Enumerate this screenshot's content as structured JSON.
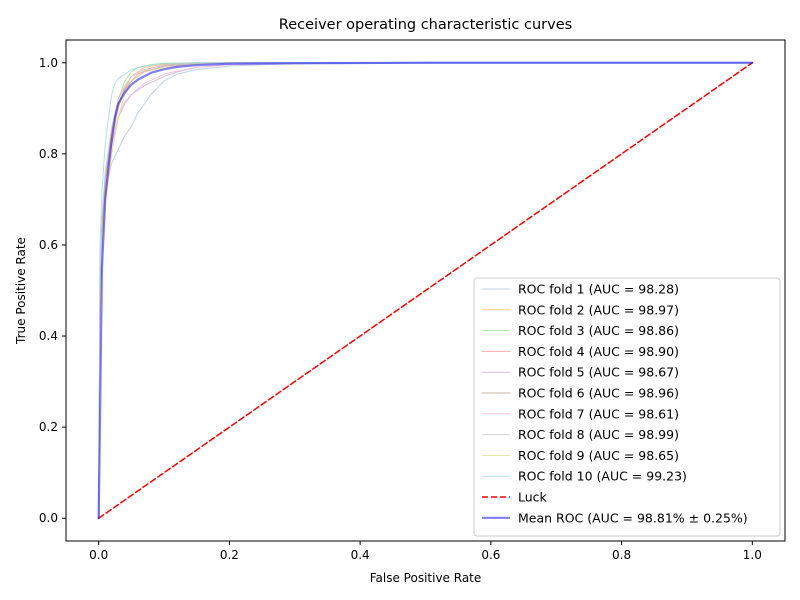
{
  "chart_data": {
    "type": "line",
    "title": "Receiver operating characteristic curves",
    "xlabel": "False Positive Rate",
    "ylabel": "True Positive Rate",
    "xlim": [
      -0.05,
      1.05
    ],
    "ylim": [
      -0.05,
      1.05
    ],
    "xticks": [
      "0.0",
      "0.2",
      "0.4",
      "0.6",
      "0.8",
      "1.0"
    ],
    "yticks": [
      "0.0",
      "0.2",
      "0.4",
      "0.6",
      "0.8",
      "1.0"
    ],
    "grid": false,
    "legend_position": "lower-right",
    "series": [
      {
        "name": "ROC fold 1 (AUC = 98.28)",
        "color": "#aec7e8",
        "alpha": 0.8,
        "width": 1,
        "x": [
          0,
          0.002,
          0.005,
          0.01,
          0.015,
          0.02,
          0.03,
          0.04,
          0.05,
          0.06,
          0.07,
          0.08,
          0.1,
          0.12,
          0.15,
          0.2,
          0.3,
          0.5,
          1.0
        ],
        "y": [
          0,
          0.42,
          0.58,
          0.7,
          0.75,
          0.78,
          0.81,
          0.84,
          0.86,
          0.89,
          0.91,
          0.93,
          0.96,
          0.975,
          0.985,
          0.993,
          0.998,
          1.0,
          1.0
        ]
      },
      {
        "name": "ROC fold 2 (AUC = 98.97)",
        "color": "#ffbb78",
        "alpha": 0.8,
        "width": 1,
        "x": [
          0,
          0.002,
          0.005,
          0.01,
          0.015,
          0.02,
          0.03,
          0.04,
          0.05,
          0.07,
          0.1,
          0.15,
          0.2,
          0.3,
          0.5,
          1.0
        ],
        "y": [
          0,
          0.45,
          0.6,
          0.7,
          0.78,
          0.83,
          0.9,
          0.945,
          0.97,
          0.99,
          0.997,
          0.999,
          1.0,
          1.0,
          1.0,
          1.0
        ]
      },
      {
        "name": "ROC fold 3 (AUC = 98.86)",
        "color": "#98df8a",
        "alpha": 0.8,
        "width": 1,
        "x": [
          0,
          0.002,
          0.005,
          0.01,
          0.02,
          0.03,
          0.04,
          0.05,
          0.06,
          0.08,
          0.1,
          0.15,
          0.2,
          0.3,
          0.5,
          1.0
        ],
        "y": [
          0,
          0.5,
          0.65,
          0.75,
          0.85,
          0.92,
          0.96,
          0.98,
          0.99,
          0.996,
          0.999,
          1.0,
          1.0,
          1.0,
          1.0,
          1.0
        ]
      },
      {
        "name": "ROC fold 4 (AUC = 98.90)",
        "color": "#ff9896",
        "alpha": 0.8,
        "width": 1,
        "x": [
          0,
          0.002,
          0.005,
          0.01,
          0.02,
          0.03,
          0.04,
          0.05,
          0.06,
          0.08,
          0.1,
          0.15,
          0.2,
          0.3,
          0.5,
          1.0
        ],
        "y": [
          0,
          0.48,
          0.62,
          0.72,
          0.84,
          0.91,
          0.945,
          0.96,
          0.975,
          0.988,
          0.995,
          0.999,
          1.0,
          1.0,
          1.0,
          1.0
        ]
      },
      {
        "name": "ROC fold 5 (AUC = 98.67)",
        "color": "#c5b0d5",
        "alpha": 0.8,
        "width": 1,
        "x": [
          0,
          0.002,
          0.005,
          0.01,
          0.02,
          0.03,
          0.04,
          0.05,
          0.07,
          0.1,
          0.12,
          0.15,
          0.2,
          0.3,
          0.5,
          1.0
        ],
        "y": [
          0,
          0.46,
          0.6,
          0.72,
          0.82,
          0.88,
          0.91,
          0.93,
          0.95,
          0.97,
          0.98,
          0.99,
          0.996,
          0.999,
          1.0,
          1.0
        ]
      },
      {
        "name": "ROC fold 6 (AUC = 98.96)",
        "color": "#c49c94",
        "alpha": 0.8,
        "width": 1,
        "x": [
          0,
          0.002,
          0.005,
          0.01,
          0.02,
          0.03,
          0.04,
          0.05,
          0.07,
          0.1,
          0.15,
          0.2,
          0.3,
          0.5,
          1.0
        ],
        "y": [
          0,
          0.5,
          0.64,
          0.74,
          0.85,
          0.91,
          0.94,
          0.96,
          0.98,
          0.993,
          0.998,
          1.0,
          1.0,
          1.0,
          1.0
        ]
      },
      {
        "name": "ROC fold 7 (AUC = 98.61)",
        "color": "#f7b6d2",
        "alpha": 0.8,
        "width": 1,
        "x": [
          0,
          0.002,
          0.005,
          0.01,
          0.02,
          0.03,
          0.04,
          0.05,
          0.07,
          0.1,
          0.12,
          0.15,
          0.2,
          0.3,
          0.5,
          1.0
        ],
        "y": [
          0,
          0.44,
          0.6,
          0.71,
          0.82,
          0.88,
          0.915,
          0.93,
          0.955,
          0.975,
          0.982,
          0.99,
          0.996,
          0.999,
          1.0,
          1.0
        ]
      },
      {
        "name": "ROC fold 8 (AUC = 98.99)",
        "color": "#c7c7c7",
        "alpha": 0.8,
        "width": 1,
        "x": [
          0,
          0.002,
          0.005,
          0.01,
          0.02,
          0.03,
          0.04,
          0.05,
          0.07,
          0.1,
          0.15,
          0.2,
          0.3,
          0.5,
          1.0
        ],
        "y": [
          0,
          0.52,
          0.66,
          0.76,
          0.86,
          0.92,
          0.95,
          0.97,
          0.985,
          0.995,
          0.999,
          1.0,
          1.0,
          1.0,
          1.0
        ]
      },
      {
        "name": "ROC fold 9 (AUC = 98.65)",
        "color": "#dbdb8d",
        "alpha": 0.8,
        "width": 1,
        "x": [
          0,
          0.002,
          0.005,
          0.01,
          0.02,
          0.03,
          0.04,
          0.05,
          0.07,
          0.1,
          0.15,
          0.2,
          0.3,
          0.5,
          1.0
        ],
        "y": [
          0,
          0.45,
          0.6,
          0.7,
          0.8,
          0.88,
          0.93,
          0.96,
          0.98,
          0.99,
          0.997,
          0.999,
          1.0,
          1.0,
          1.0
        ]
      },
      {
        "name": "ROC fold 10 (AUC = 99.23)",
        "color": "#9edae5",
        "alpha": 0.8,
        "width": 1,
        "x": [
          0,
          0.002,
          0.005,
          0.01,
          0.015,
          0.02,
          0.025,
          0.03,
          0.04,
          0.05,
          0.07,
          0.1,
          0.15,
          0.2,
          0.3,
          0.5,
          1.0
        ],
        "y": [
          0,
          0.6,
          0.72,
          0.82,
          0.88,
          0.93,
          0.955,
          0.965,
          0.975,
          0.985,
          0.993,
          0.998,
          1.0,
          1.0,
          1.0,
          1.0,
          1.0
        ]
      },
      {
        "name": "Luck",
        "color": "#ff0000",
        "alpha": 1,
        "width": 1.5,
        "dashed": true,
        "x": [
          0,
          1
        ],
        "y": [
          0,
          1
        ]
      },
      {
        "name": "Mean ROC (AUC = 98.81% ± 0.25%)",
        "color": "#0000ff",
        "alpha": 0.5,
        "width": 2.2,
        "x": [
          0,
          0.005,
          0.01,
          0.015,
          0.02,
          0.025,
          0.03,
          0.04,
          0.05,
          0.06,
          0.08,
          0.1,
          0.12,
          0.15,
          0.2,
          0.3,
          0.5,
          1.0
        ],
        "y": [
          0,
          0.55,
          0.7,
          0.77,
          0.83,
          0.88,
          0.91,
          0.935,
          0.952,
          0.963,
          0.978,
          0.986,
          0.991,
          0.995,
          0.998,
          0.999,
          1.0,
          1.0
        ]
      }
    ]
  }
}
